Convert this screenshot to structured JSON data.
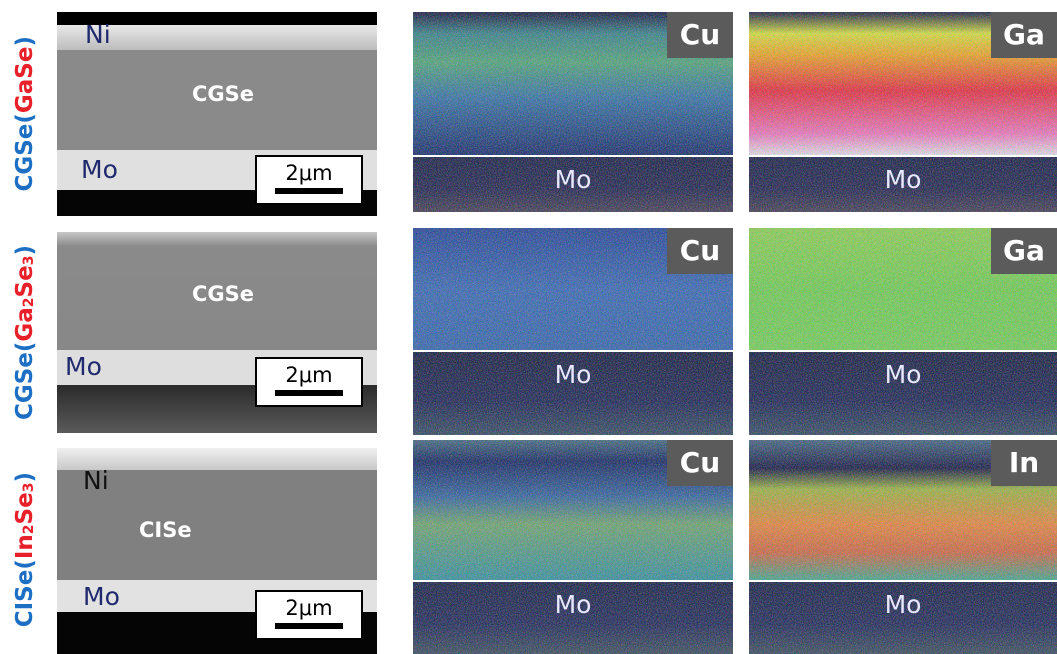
{
  "rows": [
    {
      "label": [
        {
          "text": "CGSe("
        },
        {
          "text": "GaSe"
        },
        {
          "text": ")"
        }
      ],
      "sem": {
        "layers": [
          "Ni",
          "CGSe",
          "Mo"
        ],
        "scale": "2μm"
      },
      "maps": [
        {
          "element": "Cu",
          "substrate": "Mo"
        },
        {
          "element": "Ga",
          "substrate": "Mo"
        }
      ]
    },
    {
      "label": [
        {
          "text": "CGSe("
        },
        {
          "text": "Ga"
        },
        {
          "text": "2"
        },
        {
          "text": "Se"
        },
        {
          "text": "3"
        },
        {
          "text": ")"
        }
      ],
      "sem": {
        "layers": [
          "CGSe",
          "Mo"
        ],
        "scale": "2μm"
      },
      "maps": [
        {
          "element": "Cu",
          "substrate": "Mo"
        },
        {
          "element": "Ga",
          "substrate": "Mo"
        }
      ]
    },
    {
      "label": [
        {
          "text": "CISe("
        },
        {
          "text": "In"
        },
        {
          "text": "2"
        },
        {
          "text": "Se"
        },
        {
          "text": "3"
        },
        {
          "text": ")"
        }
      ],
      "sem": {
        "layers": [
          "Ni",
          "CISe",
          "Mo"
        ],
        "scale": "2μm"
      },
      "maps": [
        {
          "element": "Cu",
          "substrate": "Mo"
        },
        {
          "element": "In",
          "substrate": "Mo"
        }
      ]
    }
  ]
}
